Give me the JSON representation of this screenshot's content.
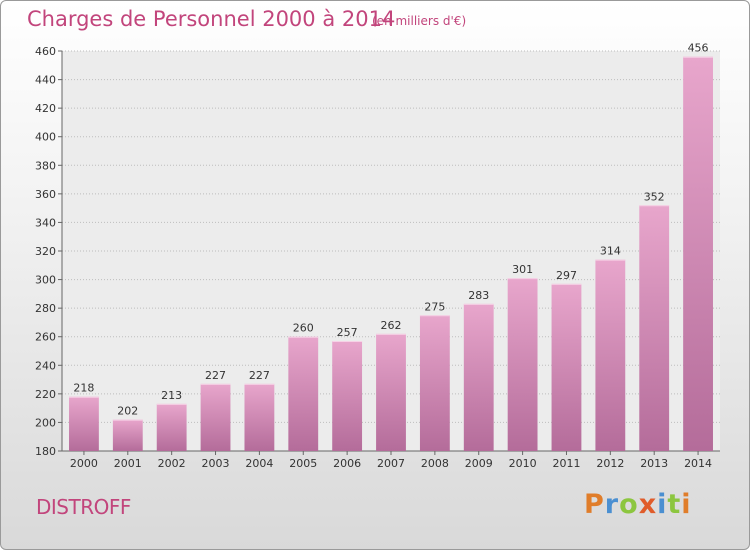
{
  "header": {
    "title": "Charges de Personnel 2000 à 2014",
    "subtitle": "(en milliers d'€)"
  },
  "footer": {
    "place": "DISTROFF",
    "logo": [
      "P",
      "r",
      "o",
      "x",
      "i",
      "t",
      "i"
    ]
  },
  "colors": {
    "accent": "#c2457c",
    "bar_top": "#e8a6cc",
    "bar_bottom": "#b46c9a",
    "logo": [
      "#e07d2a",
      "#4a8fd1",
      "#8cc63f",
      "#e05c2a",
      "#4a8fd1",
      "#8cc63f",
      "#e07d2a"
    ]
  },
  "chart_data": {
    "type": "bar",
    "title": "Charges de Personnel 2000 à 2014",
    "xlabel": "",
    "ylabel": "",
    "categories": [
      "2000",
      "2001",
      "2002",
      "2003",
      "2004",
      "2005",
      "2006",
      "2007",
      "2008",
      "2009",
      "2010",
      "2011",
      "2012",
      "2013",
      "2014"
    ],
    "values": [
      218,
      202,
      213,
      227,
      227,
      260,
      257,
      262,
      275,
      283,
      301,
      297,
      314,
      352,
      456
    ],
    "ylim": [
      180,
      460
    ],
    "yticks": [
      180,
      200,
      220,
      240,
      260,
      280,
      300,
      320,
      340,
      360,
      380,
      400,
      420,
      440,
      460
    ],
    "grid": true
  }
}
